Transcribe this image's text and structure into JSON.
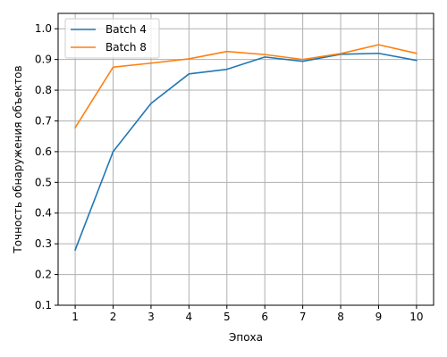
{
  "chart_data": {
    "type": "line",
    "xlabel": "Эпоха",
    "ylabel": "Точность обнаружения объектов",
    "x": [
      1,
      2,
      3,
      4,
      5,
      6,
      7,
      8,
      9,
      10
    ],
    "xlim": [
      0.55,
      10.45
    ],
    "ylim": [
      0.1,
      1.05
    ],
    "xticks": [
      1,
      2,
      3,
      4,
      5,
      6,
      7,
      8,
      9,
      10
    ],
    "yticks": [
      0.1,
      0.2,
      0.3,
      0.4,
      0.5,
      0.6,
      0.7,
      0.8,
      0.9,
      1.0
    ],
    "ytick_labels": [
      "0.1",
      "0.2",
      "0.3",
      "0.4",
      "0.5",
      "0.6",
      "0.7",
      "0.8",
      "0.9",
      "1.0"
    ],
    "grid": true,
    "legend_position": "top-left",
    "series": [
      {
        "name": "Batch 4",
        "color": "#1f77b4",
        "values": [
          0.28,
          0.6,
          0.757,
          0.853,
          0.868,
          0.908,
          0.894,
          0.917,
          0.92,
          0.897
        ]
      },
      {
        "name": "Batch 8",
        "color": "#ff7f0e",
        "values": [
          0.678,
          0.875,
          0.888,
          0.902,
          0.926,
          0.916,
          0.9,
          0.919,
          0.948,
          0.92
        ]
      }
    ]
  }
}
